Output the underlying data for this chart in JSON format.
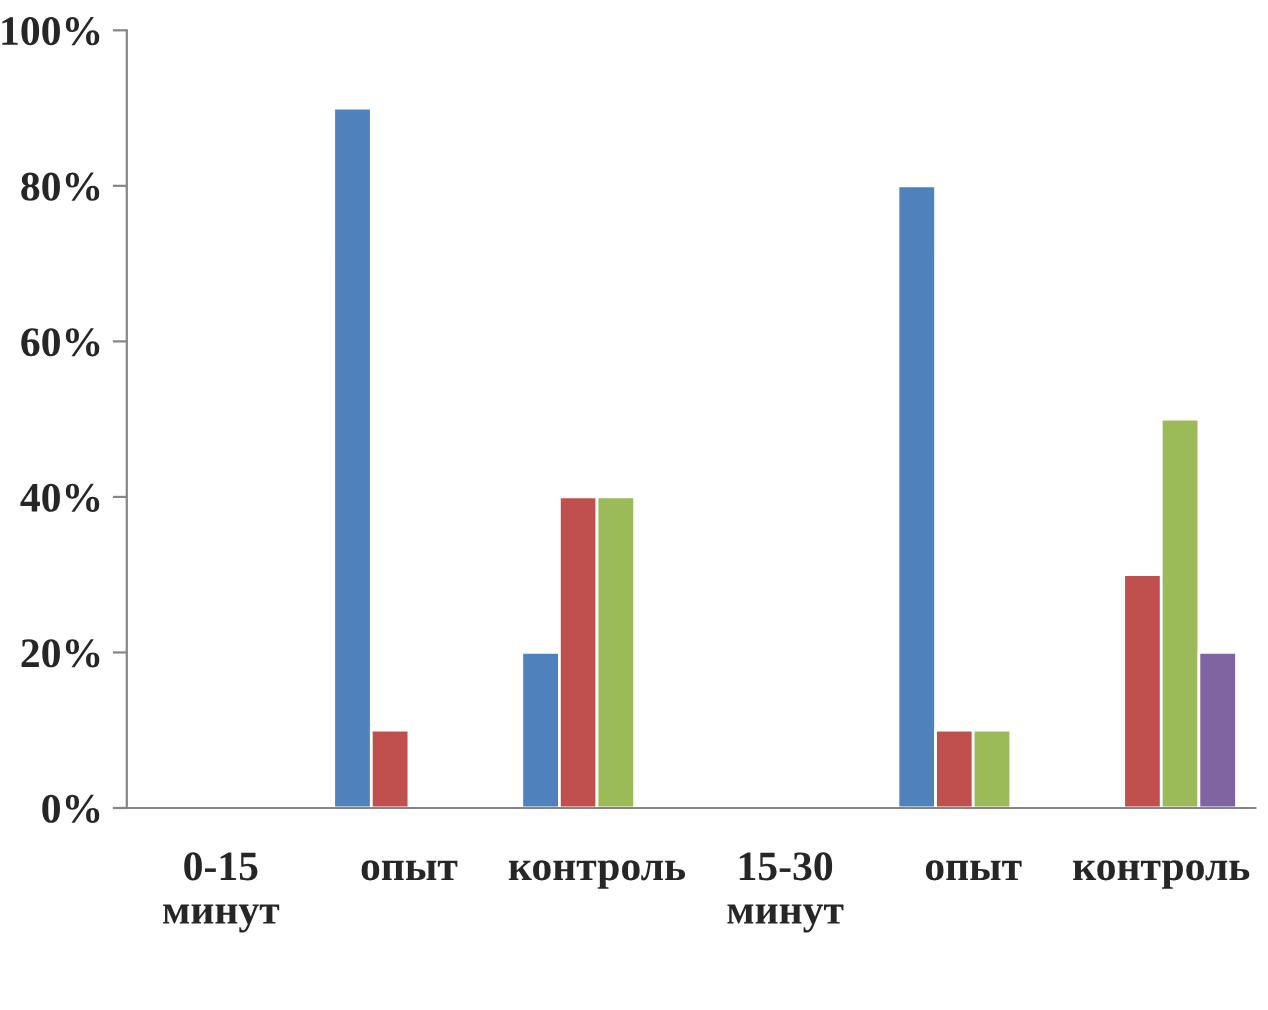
{
  "chart_data": {
    "type": "bar",
    "categories": [
      "0-15\nминут",
      "опыт",
      "контроль",
      "15-30\nминут",
      "опыт",
      "контроль"
    ],
    "series": [
      {
        "color": "#4f81bd",
        "values": [
          null,
          90,
          20,
          null,
          80,
          null
        ]
      },
      {
        "color": "#c0504d",
        "values": [
          null,
          10,
          40,
          null,
          10,
          30
        ]
      },
      {
        "color": "#9bbb59",
        "values": [
          null,
          null,
          40,
          null,
          10,
          50
        ]
      },
      {
        "color": "#8064a2",
        "values": [
          null,
          null,
          null,
          null,
          null,
          20
        ]
      }
    ],
    "ylim": [
      0,
      100
    ],
    "yticks": [
      {
        "value": 0,
        "label": "0%"
      },
      {
        "value": 20,
        "label": "20%"
      },
      {
        "value": 40,
        "label": "40%"
      },
      {
        "value": 60,
        "label": "60%"
      },
      {
        "value": 80,
        "label": "80%"
      },
      {
        "value": 100,
        "label": "100%"
      }
    ],
    "grid": false,
    "legend": false
  }
}
